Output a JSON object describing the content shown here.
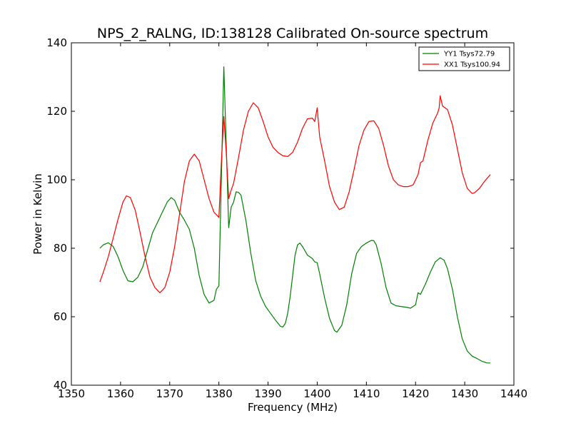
{
  "chart_data": {
    "type": "line",
    "title": "NPS_2_RALNG, ID:138128 Calibrated On-source spectrum",
    "xlabel": "Frequency (MHz)",
    "ylabel": "Power in Kelvin",
    "xlim": [
      1350,
      1440
    ],
    "ylim": [
      40,
      140
    ],
    "xticks": [
      1350,
      1360,
      1370,
      1380,
      1390,
      1400,
      1410,
      1420,
      1430,
      1440
    ],
    "yticks": [
      40,
      60,
      80,
      100,
      120,
      140
    ],
    "grid": false,
    "legend_position": "top-right",
    "series": [
      {
        "name": "YY1 Tsys72.79",
        "color": "#008000",
        "points": [
          [
            1355.8,
            80.0
          ],
          [
            1356.5,
            81.0
          ],
          [
            1357.5,
            81.6
          ],
          [
            1358.5,
            80.5
          ],
          [
            1359.5,
            77.5
          ],
          [
            1360.5,
            73.5
          ],
          [
            1361.5,
            70.5
          ],
          [
            1362.5,
            70.2
          ],
          [
            1363.5,
            71.5
          ],
          [
            1364.5,
            74.5
          ],
          [
            1365.5,
            79.5
          ],
          [
            1366.5,
            84.5
          ],
          [
            1367.5,
            87.5
          ],
          [
            1368.5,
            90.5
          ],
          [
            1369.5,
            93.5
          ],
          [
            1370.3,
            94.8
          ],
          [
            1371.0,
            94.0
          ],
          [
            1372.0,
            90.5
          ],
          [
            1373.0,
            88.2
          ],
          [
            1374.0,
            85.5
          ],
          [
            1375.0,
            80.0
          ],
          [
            1376.0,
            72.0
          ],
          [
            1377.0,
            66.5
          ],
          [
            1378.0,
            64.0
          ],
          [
            1379.0,
            64.8
          ],
          [
            1379.5,
            68.0
          ],
          [
            1380.0,
            69.0
          ],
          [
            1380.5,
            100.0
          ],
          [
            1381.0,
            133.0
          ],
          [
            1381.5,
            110.0
          ],
          [
            1382.0,
            86.0
          ],
          [
            1382.5,
            92.0
          ],
          [
            1383.0,
            93.5
          ],
          [
            1383.5,
            96.5
          ],
          [
            1384.0,
            96.3
          ],
          [
            1384.5,
            95.5
          ],
          [
            1385.5,
            88.0
          ],
          [
            1386.5,
            78.5
          ],
          [
            1387.5,
            70.5
          ],
          [
            1388.5,
            66.0
          ],
          [
            1389.5,
            63.0
          ],
          [
            1390.5,
            61.0
          ],
          [
            1391.5,
            59.0
          ],
          [
            1392.5,
            57.2
          ],
          [
            1393.0,
            57.0
          ],
          [
            1393.5,
            58.0
          ],
          [
            1394.0,
            61.0
          ],
          [
            1394.5,
            66.0
          ],
          [
            1395.0,
            72.0
          ],
          [
            1395.5,
            78.0
          ],
          [
            1396.0,
            81.0
          ],
          [
            1396.5,
            81.5
          ],
          [
            1397.0,
            80.5
          ],
          [
            1398.0,
            78.0
          ],
          [
            1399.0,
            77.0
          ],
          [
            1399.5,
            76.0
          ],
          [
            1400.0,
            75.8
          ],
          [
            1400.5,
            72.5
          ],
          [
            1401.5,
            65.5
          ],
          [
            1402.5,
            59.5
          ],
          [
            1403.5,
            56.0
          ],
          [
            1404.0,
            55.5
          ],
          [
            1405.0,
            57.5
          ],
          [
            1406.0,
            63.5
          ],
          [
            1407.0,
            72.5
          ],
          [
            1408.0,
            78.5
          ],
          [
            1409.0,
            80.5
          ],
          [
            1410.0,
            81.5
          ],
          [
            1411.0,
            82.3
          ],
          [
            1411.5,
            82.2
          ],
          [
            1412.0,
            81.0
          ],
          [
            1413.0,
            75.5
          ],
          [
            1414.0,
            68.5
          ],
          [
            1415.0,
            64.0
          ],
          [
            1416.0,
            63.2
          ],
          [
            1417.0,
            63.0
          ],
          [
            1418.0,
            62.8
          ],
          [
            1419.0,
            62.5
          ],
          [
            1420.0,
            63.5
          ],
          [
            1420.5,
            67.0
          ],
          [
            1421.0,
            66.5
          ],
          [
            1422.0,
            69.5
          ],
          [
            1423.0,
            73.0
          ],
          [
            1424.0,
            76.0
          ],
          [
            1425.0,
            77.2
          ],
          [
            1425.8,
            76.5
          ],
          [
            1426.5,
            74.0
          ],
          [
            1427.5,
            68.0
          ],
          [
            1428.5,
            60.0
          ],
          [
            1429.5,
            53.5
          ],
          [
            1430.5,
            50.0
          ],
          [
            1431.5,
            48.5
          ],
          [
            1432.5,
            47.8
          ],
          [
            1433.5,
            47.0
          ],
          [
            1434.5,
            46.5
          ],
          [
            1435.2,
            46.5
          ]
        ]
      },
      {
        "name": "XX1 Tsys100.94",
        "color": "#ff0000",
        "points": [
          [
            1355.8,
            70.2
          ],
          [
            1356.5,
            73.0
          ],
          [
            1357.5,
            77.5
          ],
          [
            1358.5,
            83.0
          ],
          [
            1359.5,
            88.5
          ],
          [
            1360.5,
            93.5
          ],
          [
            1361.2,
            95.3
          ],
          [
            1362.0,
            94.8
          ],
          [
            1363.0,
            91.0
          ],
          [
            1364.0,
            84.5
          ],
          [
            1365.0,
            77.5
          ],
          [
            1366.0,
            71.5
          ],
          [
            1367.0,
            68.5
          ],
          [
            1368.0,
            67.0
          ],
          [
            1369.0,
            68.5
          ],
          [
            1370.0,
            73.0
          ],
          [
            1371.0,
            80.5
          ],
          [
            1372.0,
            90.0
          ],
          [
            1373.0,
            99.5
          ],
          [
            1374.0,
            105.5
          ],
          [
            1375.0,
            107.5
          ],
          [
            1376.0,
            105.5
          ],
          [
            1377.0,
            100.0
          ],
          [
            1378.0,
            94.5
          ],
          [
            1379.0,
            90.5
          ],
          [
            1379.5,
            89.8
          ],
          [
            1380.0,
            89.0
          ],
          [
            1380.5,
            105.0
          ],
          [
            1381.0,
            118.5
          ],
          [
            1381.5,
            108.0
          ],
          [
            1382.0,
            94.5
          ],
          [
            1382.5,
            97.0
          ],
          [
            1383.0,
            99.0
          ],
          [
            1384.0,
            106.5
          ],
          [
            1385.0,
            114.5
          ],
          [
            1386.0,
            120.0
          ],
          [
            1387.0,
            122.5
          ],
          [
            1388.0,
            121.0
          ],
          [
            1389.0,
            117.0
          ],
          [
            1390.0,
            112.5
          ],
          [
            1391.0,
            109.5
          ],
          [
            1392.0,
            108.0
          ],
          [
            1393.0,
            107.0
          ],
          [
            1394.0,
            106.8
          ],
          [
            1395.0,
            108.0
          ],
          [
            1396.0,
            111.0
          ],
          [
            1397.0,
            115.0
          ],
          [
            1398.0,
            117.8
          ],
          [
            1399.0,
            118.0
          ],
          [
            1399.5,
            117.0
          ],
          [
            1400.0,
            121.0
          ],
          [
            1400.5,
            112.5
          ],
          [
            1401.5,
            105.5
          ],
          [
            1402.5,
            98.0
          ],
          [
            1403.5,
            93.5
          ],
          [
            1404.5,
            91.3
          ],
          [
            1405.5,
            92.0
          ],
          [
            1406.5,
            96.5
          ],
          [
            1407.5,
            103.0
          ],
          [
            1408.5,
            110.0
          ],
          [
            1409.5,
            114.5
          ],
          [
            1410.5,
            117.0
          ],
          [
            1411.5,
            117.2
          ],
          [
            1412.5,
            115.0
          ],
          [
            1413.5,
            110.0
          ],
          [
            1414.5,
            104.0
          ],
          [
            1415.5,
            100.0
          ],
          [
            1416.5,
            98.5
          ],
          [
            1417.5,
            98.0
          ],
          [
            1418.5,
            98.0
          ],
          [
            1419.5,
            98.5
          ],
          [
            1420.5,
            101.5
          ],
          [
            1421.0,
            105.0
          ],
          [
            1421.5,
            105.5
          ],
          [
            1422.5,
            111.5
          ],
          [
            1423.5,
            116.5
          ],
          [
            1424.5,
            119.5
          ],
          [
            1424.8,
            121.0
          ],
          [
            1425.0,
            124.5
          ],
          [
            1425.5,
            121.5
          ],
          [
            1426.5,
            120.5
          ],
          [
            1427.5,
            116.0
          ],
          [
            1428.5,
            109.0
          ],
          [
            1429.5,
            102.0
          ],
          [
            1430.5,
            97.5
          ],
          [
            1431.5,
            96.0
          ],
          [
            1432.0,
            96.2
          ],
          [
            1433.0,
            97.5
          ],
          [
            1434.0,
            99.5
          ],
          [
            1435.2,
            101.5
          ]
        ]
      }
    ]
  }
}
